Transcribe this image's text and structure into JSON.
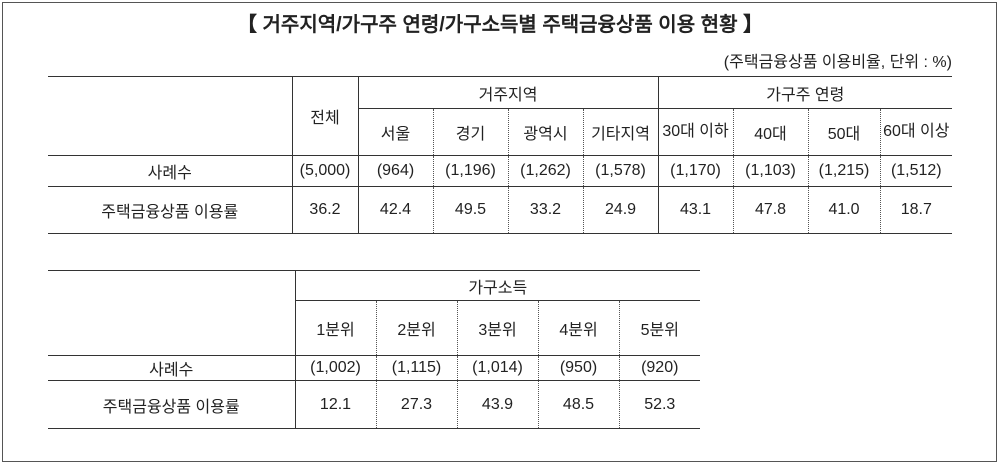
{
  "title": "【 거주지역/가구주 연령/가구소득별 주택금융상품 이용 현황 】",
  "note": "(주택금융상품 이용비율, 단위 : %)",
  "table1": {
    "groups": [
      "거주지역",
      "가구주 연령"
    ],
    "columns": [
      "전체",
      "서울",
      "경기",
      "광역시",
      "기타지역",
      "30대 이하",
      "40대",
      "50대",
      "60대 이상"
    ],
    "rows": [
      [
        "사례수",
        "(5,000)",
        "(964)",
        "(1,196)",
        "(1,262)",
        "(1,578)",
        "(1,170)",
        "(1,103)",
        "(1,215)",
        "(1,512)"
      ],
      [
        "주택금융상품 이용률",
        "36.2",
        "42.4",
        "49.5",
        "33.2",
        "24.9",
        "43.1",
        "47.8",
        "41.0",
        "18.7"
      ]
    ]
  },
  "table2": {
    "group": "가구소득",
    "columns": [
      "1분위",
      "2분위",
      "3분위",
      "4분위",
      "5분위"
    ],
    "rows": [
      [
        "사례수",
        "(1,002)",
        "(1,115)",
        "(1,014)",
        "(950)",
        "(920)"
      ],
      [
        "주택금융상품 이용률",
        "12.1",
        "27.3",
        "43.9",
        "48.5",
        "52.3"
      ]
    ]
  }
}
